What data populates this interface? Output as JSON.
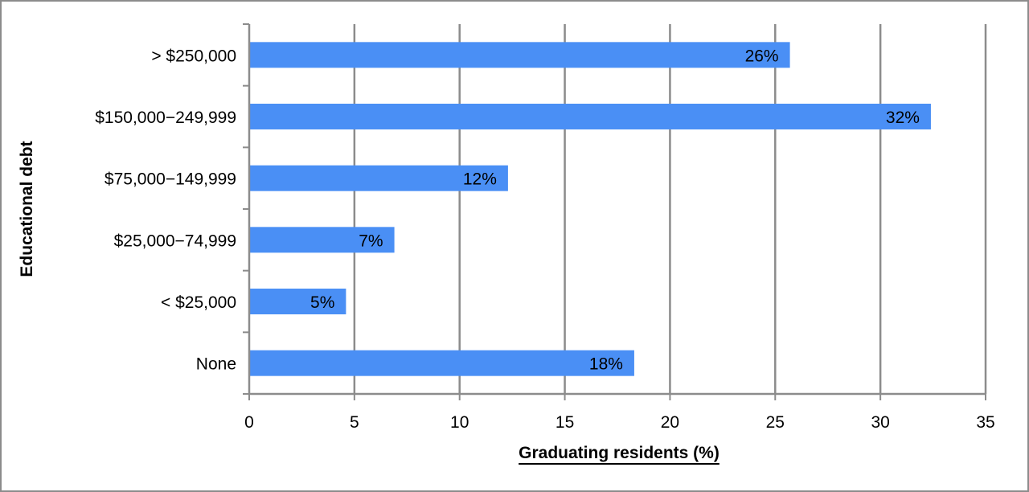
{
  "chart_data": {
    "type": "bar",
    "orientation": "horizontal",
    "categories": [
      "> $250,000",
      "$150,000−249,999",
      "$75,000−149,999",
      "$25,000−74,999",
      "< $25,000",
      "None"
    ],
    "values": [
      25.7,
      32.4,
      12.3,
      6.9,
      4.6,
      18.3
    ],
    "data_labels": [
      "26%",
      "32%",
      "12%",
      "7%",
      "5%",
      "18%"
    ],
    "xlabel": "Graduating residents (%)",
    "ylabel": "Educational debt",
    "xlim": [
      0,
      35
    ],
    "xticks": [
      0,
      5,
      10,
      15,
      20,
      25,
      30,
      35
    ],
    "grid": "vertical",
    "legend": "none",
    "colors": {
      "bar": "#4a8ff5",
      "grid": "#8c8c8c",
      "axis": "#8c8c8c",
      "frame": "#8c8c8c"
    }
  }
}
